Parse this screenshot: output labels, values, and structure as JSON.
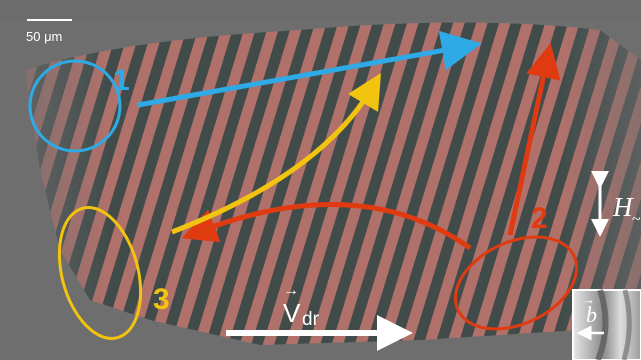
{
  "scale_bar": {
    "label": "50 μm"
  },
  "markers": {
    "m1": {
      "label": "1",
      "color": "#2eaae6"
    },
    "m2": {
      "label": "2",
      "color": "#e03a10"
    },
    "m3": {
      "label": "3",
      "color": "#f2c40f"
    }
  },
  "drift_velocity": {
    "symbol": "V",
    "subscript": "dr",
    "arrow": "→"
  },
  "field": {
    "symbol": "H",
    "suffix": "~"
  },
  "inset": {
    "symbol": "b",
    "arrow": "→"
  },
  "colors": {
    "background": "#6e6e6e",
    "stripe_red": "#b4716b",
    "stripe_dark": "#3f4a48",
    "white": "#ffffff"
  }
}
